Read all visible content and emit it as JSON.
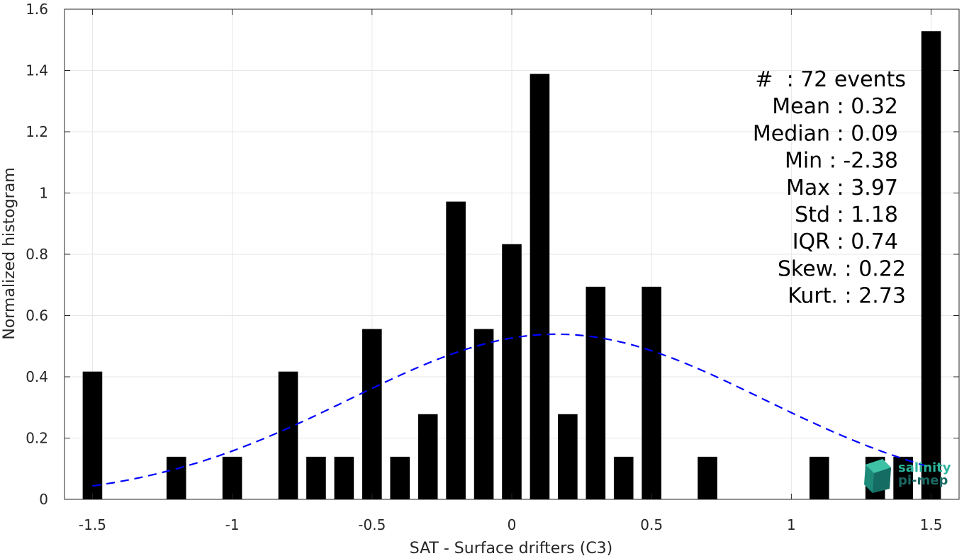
{
  "chart_data": {
    "type": "bar",
    "xlabel": "SAT - Surface drifters (C3)",
    "ylabel": "Normalized histogram",
    "xlim": [
      -1.6,
      1.6
    ],
    "ylim": [
      0,
      1.6
    ],
    "xticks": [
      -1.5,
      -1,
      -0.5,
      0,
      0.5,
      1,
      1.5
    ],
    "xtick_labels": [
      "-1.5",
      "-1",
      "-0.5",
      "0",
      "0.5",
      "1",
      "1.5"
    ],
    "yticks": [
      0,
      0.2,
      0.4,
      0.6,
      0.8,
      1,
      1.2,
      1.4,
      1.6
    ],
    "ytick_labels": [
      "0",
      "0.2",
      "0.4",
      "0.6",
      "0.8",
      "1",
      "1.2",
      "1.4",
      "1.6"
    ],
    "grid": true,
    "bar_width": 0.07,
    "bar_color": "#000000",
    "bars": [
      {
        "x": -1.5,
        "y": 0.417
      },
      {
        "x": -1.2,
        "y": 0.139
      },
      {
        "x": -1.0,
        "y": 0.139
      },
      {
        "x": -0.8,
        "y": 0.417
      },
      {
        "x": -0.7,
        "y": 0.139
      },
      {
        "x": -0.6,
        "y": 0.139
      },
      {
        "x": -0.5,
        "y": 0.556
      },
      {
        "x": -0.4,
        "y": 0.139
      },
      {
        "x": -0.3,
        "y": 0.278
      },
      {
        "x": -0.2,
        "y": 0.972
      },
      {
        "x": -0.1,
        "y": 0.556
      },
      {
        "x": 0.0,
        "y": 0.833
      },
      {
        "x": 0.1,
        "y": 1.389
      },
      {
        "x": 0.2,
        "y": 0.278
      },
      {
        "x": 0.3,
        "y": 0.694
      },
      {
        "x": 0.4,
        "y": 0.139
      },
      {
        "x": 0.5,
        "y": 0.694
      },
      {
        "x": 0.7,
        "y": 0.139
      },
      {
        "x": 1.1,
        "y": 0.139
      },
      {
        "x": 1.3,
        "y": 0.139
      },
      {
        "x": 1.4,
        "y": 0.139
      },
      {
        "x": 1.5,
        "y": 1.528
      }
    ],
    "fit_curve": {
      "style": "dashed",
      "color": "#0000ff",
      "mean": 0.16,
      "std": 0.74,
      "x_range": [
        -1.5,
        1.5
      ]
    },
    "stats_box": {
      "placement": "top-right",
      "lines": [
        "#  : 72 events",
        "Mean : 0.32",
        "Median : 0.09",
        "Min : -2.38",
        "Max : 3.97",
        "Std : 1.18",
        "IQR : 0.74",
        "Skew. : 0.22",
        "Kurt. : 2.73"
      ]
    }
  },
  "logo": {
    "line1": "salinity",
    "line2": "pi-mep",
    "color_light": "#2bb39a",
    "color_dark": "#1a6a64"
  }
}
